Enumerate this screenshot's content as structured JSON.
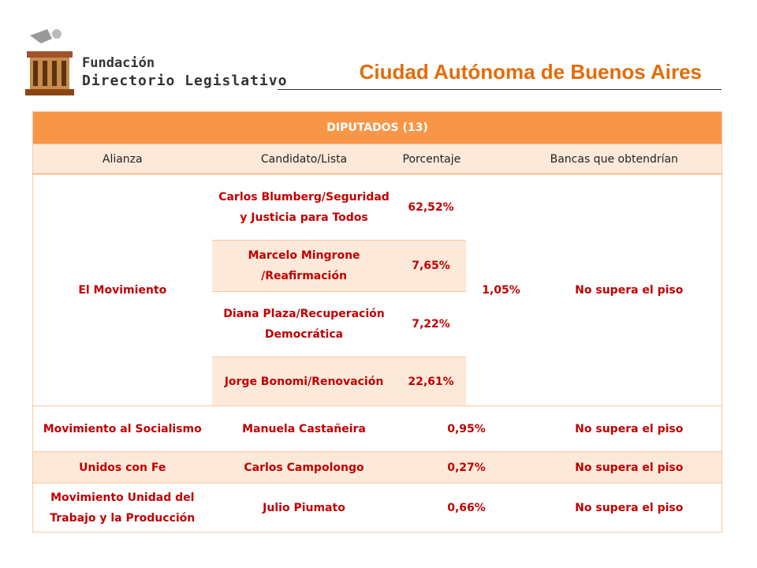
{
  "header": {
    "brand": {
      "line1": "Fundación",
      "line2": "Directorio Legislativo"
    },
    "title": "Ciudad Autónoma de Buenos Aires"
  },
  "table": {
    "caption": "DIPUTADOS (13)",
    "columns": [
      "Alianza",
      "Candidato/Lista",
      "Porcentaje",
      "Bancas que obtendrían"
    ],
    "movimiento": {
      "alianza": "El Movimiento",
      "candidatos": [
        {
          "nombre": "Carlos Blumberg/Seguridad y Justicia para Todos",
          "porcentaje": "62,52%"
        },
        {
          "nombre": "Marcelo Mingrone /Reafirmación",
          "porcentaje": "7,65%"
        },
        {
          "nombre": "Diana Plaza/Recuperación Democrática",
          "porcentaje": "7,22%"
        },
        {
          "nombre": "Jorge Bonomi/Renovación",
          "porcentaje": "22,61%"
        }
      ],
      "porcentaje": "1,05%",
      "bancas": "No supera el piso"
    },
    "rows": [
      {
        "alianza": "Movimiento al Socialismo",
        "candidato": "Manuela Castañeira",
        "porcentaje": "0,95%",
        "bancas": "No supera el piso"
      },
      {
        "alianza": "Unidos con Fe",
        "candidato": "Carlos Campolongo",
        "porcentaje": "0,27%",
        "bancas": "No supera el piso"
      },
      {
        "alianza": "Movimiento Unidad del Trabajo y la Producción",
        "candidato": "Julio Piumato",
        "porcentaje": "0,66%",
        "bancas": "No supera el piso"
      }
    ]
  }
}
